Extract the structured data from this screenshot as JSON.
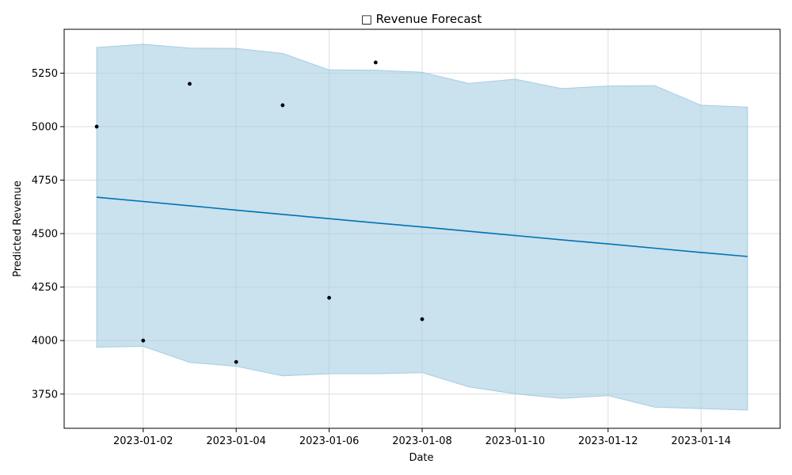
{
  "chart_data": {
    "type": "line",
    "title": "□ Revenue Forecast",
    "xlabel": "Date",
    "ylabel": "Predicted Revenue",
    "x_ticks": [
      "2023-01-02",
      "2023-01-04",
      "2023-01-06",
      "2023-01-08",
      "2023-01-10",
      "2023-01-12",
      "2023-01-14"
    ],
    "y_ticks": [
      3750,
      4000,
      4250,
      4500,
      4750,
      5000,
      5250
    ],
    "xlim": [
      "2022-12-31T07:12",
      "2023-01-15T16:48"
    ],
    "ylim": [
      3590,
      5455
    ],
    "grid": true,
    "colors": {
      "forecast_line": "#0072B2",
      "interval_fill": "#a6cde3",
      "interval_edge": "#a6cde3",
      "observed_points": "#000000",
      "grid": "#dddddd"
    },
    "observed": {
      "x": [
        "2023-01-01",
        "2023-01-02",
        "2023-01-03",
        "2023-01-04",
        "2023-01-05",
        "2023-01-06",
        "2023-01-07",
        "2023-01-08"
      ],
      "y": [
        5000,
        4000,
        5200,
        3900,
        5100,
        4200,
        5300,
        4100
      ]
    },
    "forecast": {
      "x": [
        "2023-01-01",
        "2023-01-02",
        "2023-01-03",
        "2023-01-04",
        "2023-01-05",
        "2023-01-06",
        "2023-01-07",
        "2023-01-08",
        "2023-01-09",
        "2023-01-10",
        "2023-01-11",
        "2023-01-12",
        "2023-01-13",
        "2023-01-14",
        "2023-01-15"
      ],
      "yhat": [
        4670,
        4650,
        4630,
        4610,
        4590,
        4570,
        4550,
        4531,
        4511,
        4491,
        4471,
        4452,
        4432,
        4412,
        4393
      ],
      "yhat_upper": [
        5370,
        5385,
        5367,
        5366,
        5342,
        5265,
        5264,
        5254,
        5202,
        5222,
        5178,
        5190,
        5192,
        5100,
        5091
      ],
      "yhat_lower": [
        3969,
        3973,
        3898,
        3880,
        3835,
        3845,
        3845,
        3850,
        3784,
        3751,
        3730,
        3743,
        3689,
        3682,
        3675
      ]
    }
  }
}
